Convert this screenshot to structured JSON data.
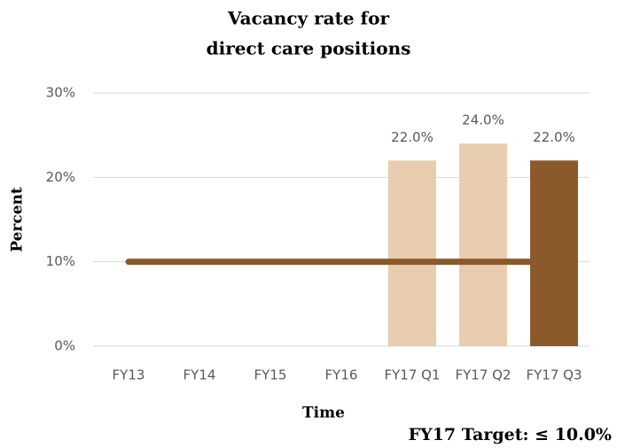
{
  "chart_data": {
    "type": "bar",
    "title": [
      "Vacancy rate for",
      "direct care positions"
    ],
    "y_label": "Percent",
    "x_label": "Time",
    "annotation": "FY17 Target: ≤ 10.0%",
    "categories": [
      "FY13",
      "FY14",
      "FY15",
      "FY16",
      "FY17 Q1",
      "FY17 Q2",
      "FY17 Q3"
    ],
    "values": [
      null,
      null,
      null,
      null,
      22,
      24,
      22
    ],
    "value_labels": [
      null,
      null,
      null,
      null,
      "22.0%",
      "24.0%",
      "22.0%"
    ],
    "colors": [
      null,
      null,
      null,
      null,
      "#e8cdb0",
      "#e8cdb0",
      "#8b5a2b"
    ],
    "target_line": {
      "value": 10,
      "color": "#8b5a2b"
    },
    "ylim": [
      0,
      30
    ],
    "yticks": [
      {
        "value": 0,
        "label": "0%"
      },
      {
        "value": 10,
        "label": "10%"
      },
      {
        "value": 20,
        "label": "20%"
      },
      {
        "value": 30,
        "label": "30%"
      }
    ],
    "grid": true
  }
}
